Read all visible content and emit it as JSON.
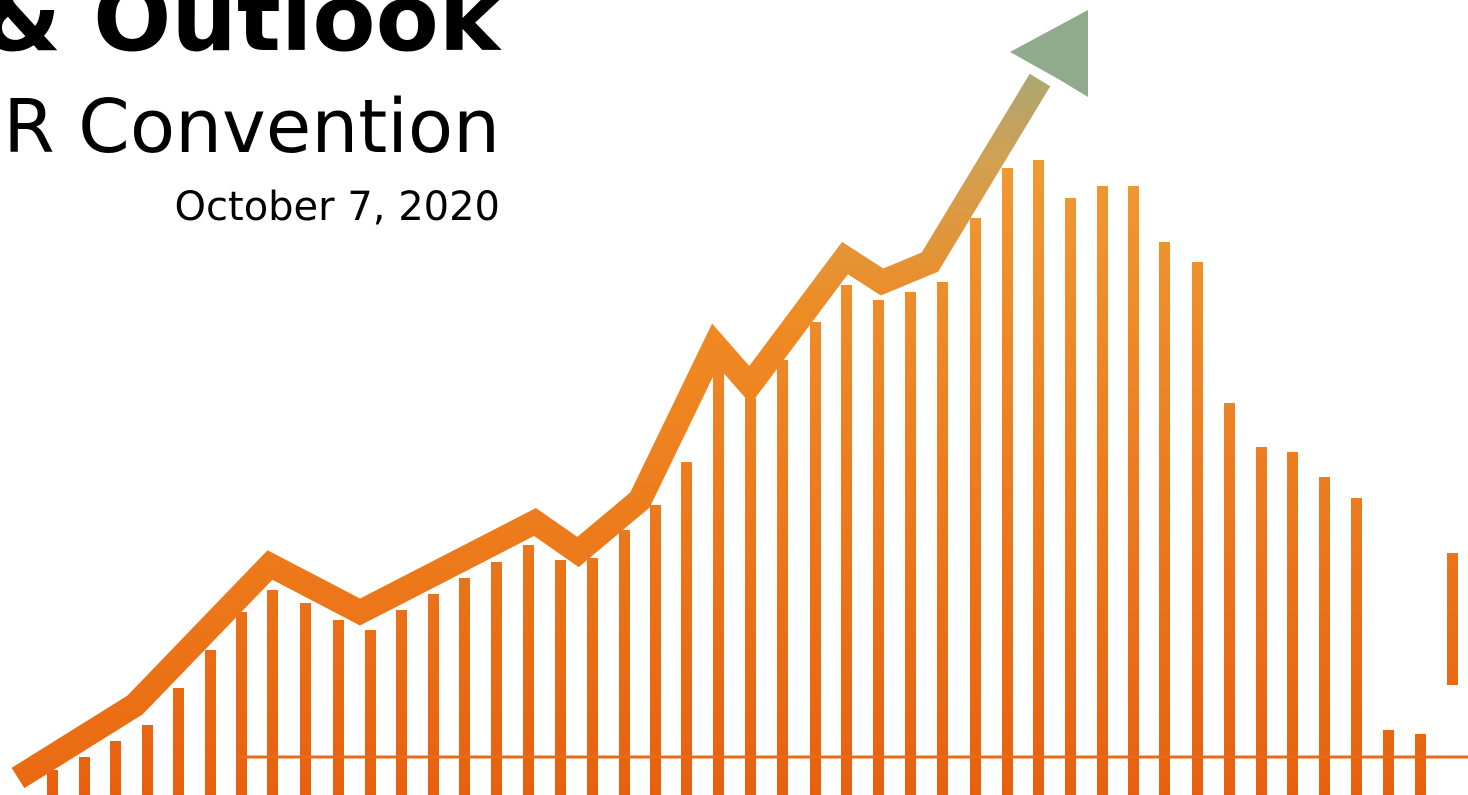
{
  "slide": {
    "title": "& Outlook",
    "subtitle": "R Convention",
    "date": "October 7, 2020"
  }
}
